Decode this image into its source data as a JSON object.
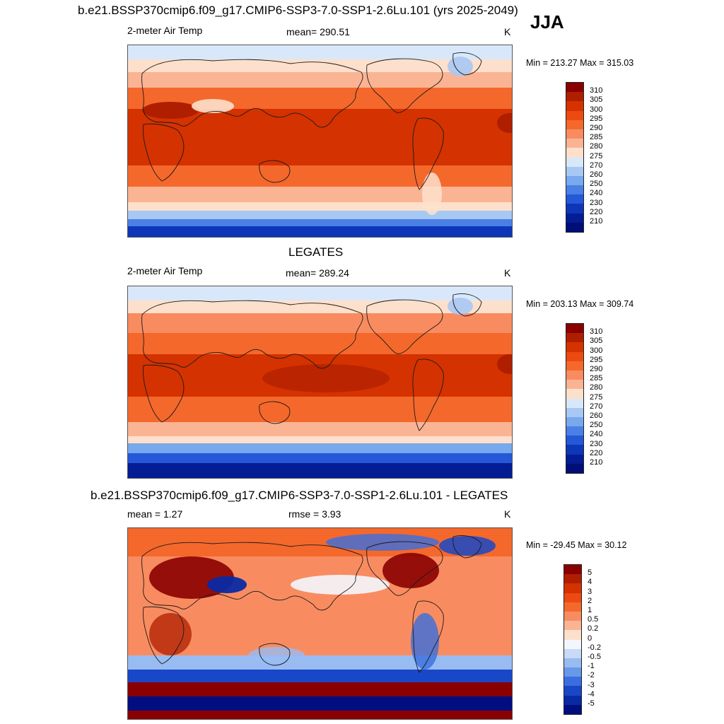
{
  "header": {
    "title": "b.e21.BSSP370cmip6.f09_g17.CMIP6-SSP3-7.0-SSP1-2.6Lu.101 (yrs 2025-2049)",
    "season": "JJA"
  },
  "panels": [
    {
      "id": "model",
      "title": "",
      "left_label": "2-meter Air Temp",
      "center_label": "mean= 290.51",
      "units": "K",
      "minmax": "Min = 213.27 Max = 315.03",
      "colorbar": {
        "labels": [
          "310",
          "305",
          "300",
          "295",
          "290",
          "285",
          "280",
          "275",
          "270",
          "260",
          "250",
          "240",
          "230",
          "220",
          "210"
        ],
        "colors": [
          "#8a0000",
          "#b01e00",
          "#d43200",
          "#ec4a10",
          "#f4682c",
          "#f88c60",
          "#fab494",
          "#fde0cc",
          "#d8e8fa",
          "#a8c8f4",
          "#78a8ee",
          "#4a80e6",
          "#2458d8",
          "#0e36b8",
          "#041c94",
          "#000e78"
        ]
      }
    },
    {
      "id": "obs",
      "title": "LEGATES",
      "left_label": "2-meter Air Temp",
      "center_label": "mean= 289.24",
      "units": "K",
      "minmax": "Min = 203.13 Max = 309.74",
      "colorbar": {
        "labels": [
          "310",
          "305",
          "300",
          "295",
          "290",
          "285",
          "280",
          "275",
          "270",
          "260",
          "250",
          "240",
          "230",
          "220",
          "210"
        ],
        "colors": [
          "#8a0000",
          "#b01e00",
          "#d43200",
          "#ec4a10",
          "#f4682c",
          "#f88c60",
          "#fab494",
          "#fde0cc",
          "#d8e8fa",
          "#a8c8f4",
          "#78a8ee",
          "#4a80e6",
          "#2458d8",
          "#0e36b8",
          "#041c94",
          "#000e78"
        ]
      }
    },
    {
      "id": "diff",
      "title": "b.e21.BSSP370cmip6.f09_g17.CMIP6-SSP3-7.0-SSP1-2.6Lu.101 - LEGATES",
      "left_label": "mean =   1.27",
      "center_label": "rmse =   3.93",
      "units": "K",
      "minmax": "Min = -29.45 Max =  30.12",
      "colorbar": {
        "labels": [
          "5",
          "4",
          "3",
          "2",
          "1",
          "0.5",
          "0.2",
          "0",
          "-0.2",
          "-0.5",
          "-1",
          "-2",
          "-3",
          "-4",
          "-5"
        ],
        "colors": [
          "#8a0000",
          "#b01e00",
          "#d43200",
          "#ec4a10",
          "#f4682c",
          "#f88c60",
          "#fab494",
          "#fde0cc",
          "#f4f6fe",
          "#c8daf8",
          "#98bcf2",
          "#6898ea",
          "#3a6ee0",
          "#1848c8",
          "#0a2aa4",
          "#000e80"
        ]
      }
    }
  ]
}
